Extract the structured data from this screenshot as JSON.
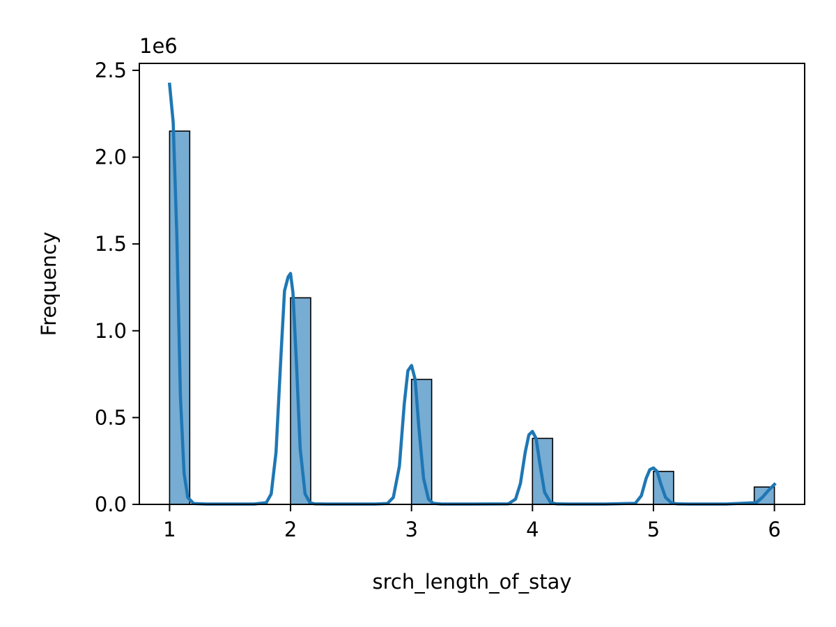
{
  "chart_data": {
    "type": "bar",
    "title": "",
    "xlabel": "srch_length_of_stay",
    "ylabel": "Frequency",
    "y_offset_label": "1e6",
    "xlim": [
      0.75,
      6.25
    ],
    "ylim": [
      0,
      2.54
    ],
    "x_ticks": [
      1,
      2,
      3,
      4,
      5,
      6
    ],
    "x_tick_labels": [
      "1",
      "2",
      "3",
      "4",
      "5",
      "6"
    ],
    "y_ticks": [
      0,
      0.5,
      1.0,
      1.5,
      2.0,
      2.5
    ],
    "y_tick_labels": [
      "0.0",
      "0.5",
      "1.0",
      "1.5",
      "2.0",
      "2.5"
    ],
    "grid": false,
    "bar_color": "#77acd3",
    "bar_edge_color": "#000000",
    "kde_color": "#1f77b4",
    "bins": [
      {
        "x0": 1.0,
        "x1": 1.1667,
        "value": 2.15
      },
      {
        "x0": 2.0,
        "x1": 2.1667,
        "value": 1.19
      },
      {
        "x0": 3.0,
        "x1": 3.1667,
        "value": 0.72
      },
      {
        "x0": 4.0,
        "x1": 4.1667,
        "value": 0.38
      },
      {
        "x0": 5.0,
        "x1": 5.1667,
        "value": 0.19
      },
      {
        "x0": 5.8333,
        "x1": 6.0,
        "value": 0.1
      }
    ],
    "kde": {
      "x": [
        1.0,
        1.03,
        1.06,
        1.09,
        1.12,
        1.15,
        1.2,
        1.3,
        1.5,
        1.7,
        1.8,
        1.84,
        1.88,
        1.92,
        1.95,
        1.98,
        2.0,
        2.02,
        2.05,
        2.08,
        2.12,
        2.16,
        2.2,
        2.3,
        2.5,
        2.7,
        2.8,
        2.85,
        2.9,
        2.94,
        2.97,
        3.0,
        3.03,
        3.06,
        3.1,
        3.14,
        3.18,
        3.25,
        3.5,
        3.8,
        3.86,
        3.9,
        3.94,
        3.97,
        4.0,
        4.03,
        4.06,
        4.1,
        4.15,
        4.2,
        4.3,
        4.6,
        4.85,
        4.9,
        4.94,
        4.97,
        5.0,
        5.03,
        5.06,
        5.1,
        5.15,
        5.2,
        5.3,
        5.6,
        5.85,
        5.9,
        5.95,
        6.0
      ],
      "y": [
        2.42,
        2.2,
        1.55,
        0.62,
        0.18,
        0.04,
        0.005,
        0.002,
        0.002,
        0.002,
        0.01,
        0.06,
        0.3,
        0.85,
        1.23,
        1.31,
        1.33,
        1.22,
        0.8,
        0.32,
        0.06,
        0.01,
        0.003,
        0.002,
        0.002,
        0.002,
        0.005,
        0.04,
        0.22,
        0.58,
        0.77,
        0.8,
        0.72,
        0.45,
        0.15,
        0.03,
        0.006,
        0.002,
        0.002,
        0.003,
        0.03,
        0.12,
        0.3,
        0.4,
        0.42,
        0.38,
        0.24,
        0.07,
        0.01,
        0.003,
        0.002,
        0.002,
        0.006,
        0.05,
        0.15,
        0.2,
        0.21,
        0.19,
        0.12,
        0.04,
        0.008,
        0.003,
        0.002,
        0.002,
        0.01,
        0.04,
        0.08,
        0.115
      ]
    }
  }
}
